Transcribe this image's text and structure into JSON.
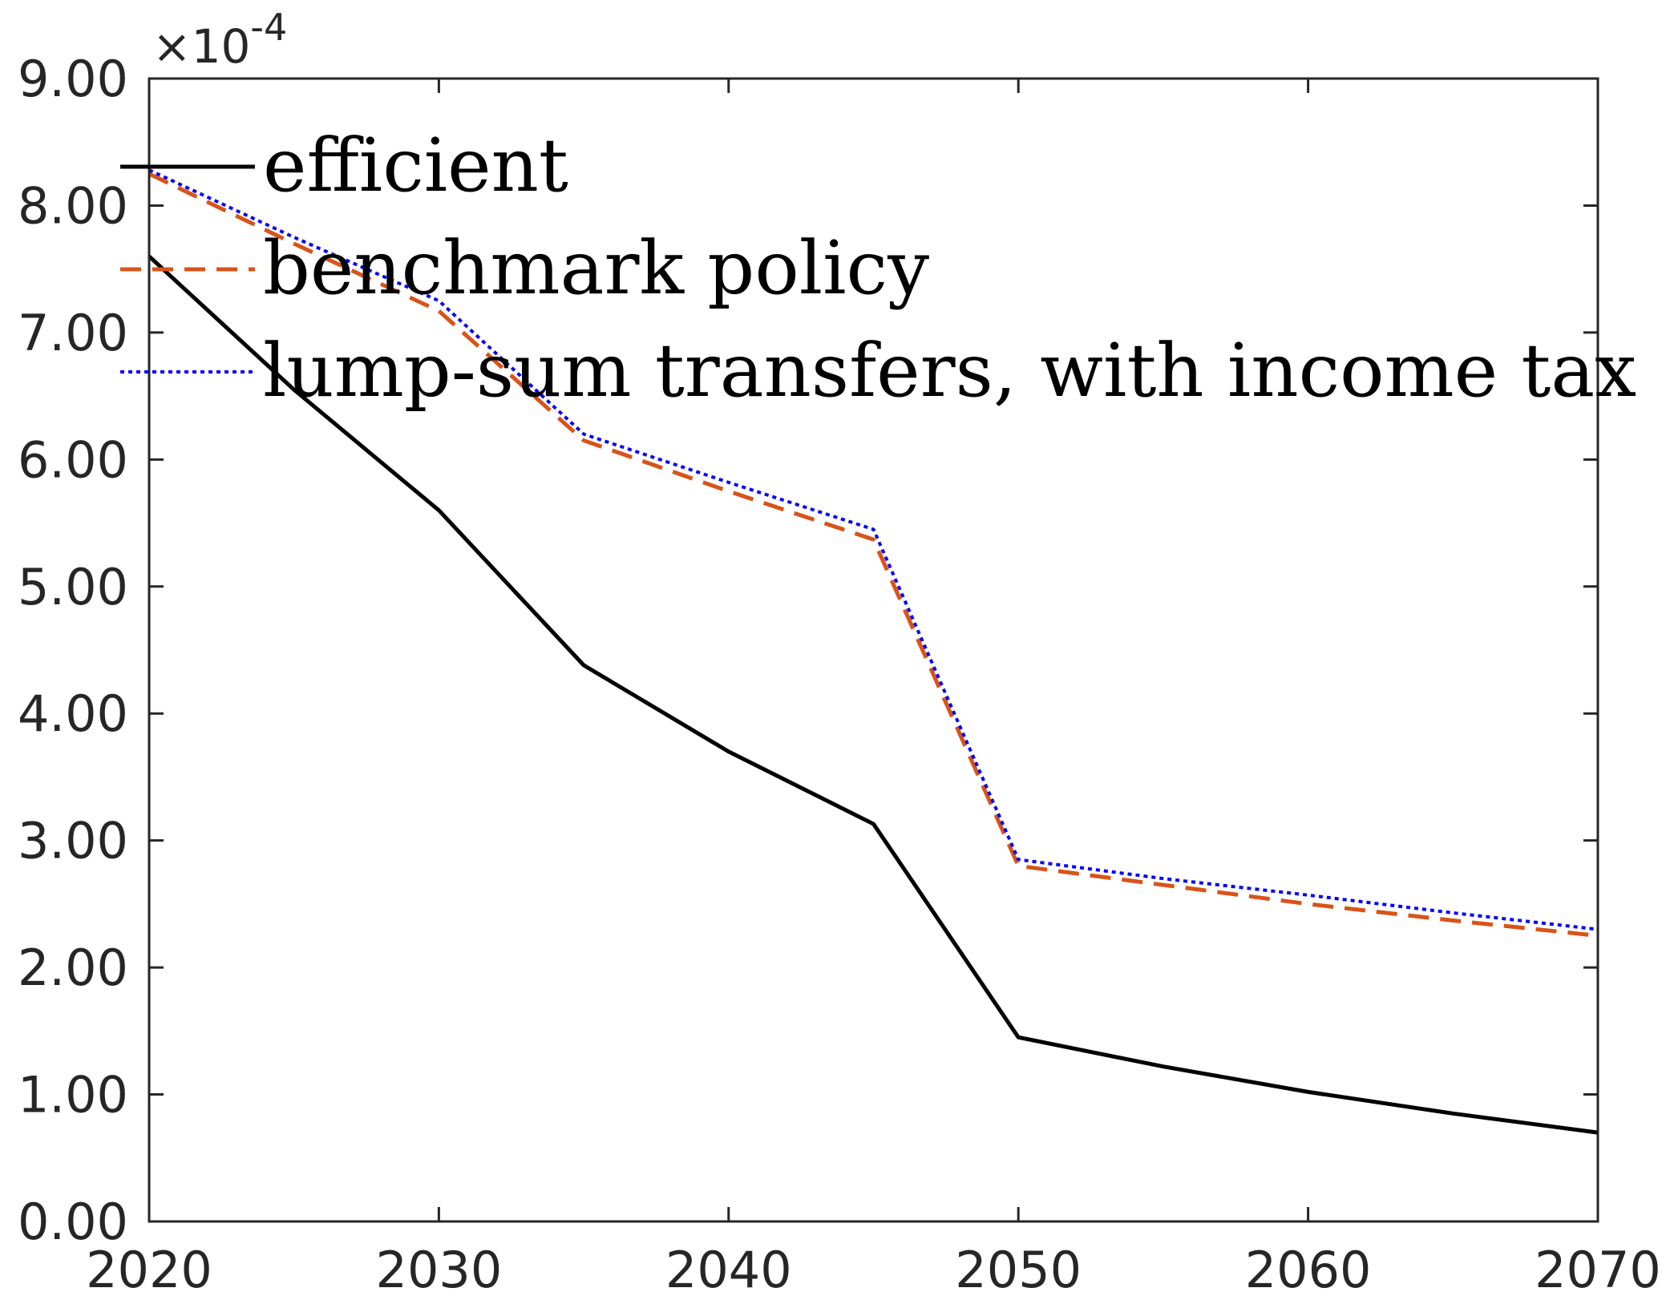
{
  "chart_data": {
    "type": "line",
    "title": "",
    "xlabel": "",
    "ylabel": "",
    "x": [
      2020,
      2025,
      2030,
      2035,
      2040,
      2045,
      2050,
      2055,
      2060,
      2065,
      2070
    ],
    "xlim": [
      2020,
      2070
    ],
    "ylim": [
      0,
      9
    ],
    "x_ticks": [
      2020,
      2030,
      2040,
      2050,
      2060,
      2070
    ],
    "x_tick_labels": [
      "2020",
      "2030",
      "2040",
      "2050",
      "2060",
      "2070"
    ],
    "y_ticks": [
      0,
      1,
      2,
      3,
      4,
      5,
      6,
      7,
      8,
      9
    ],
    "y_tick_labels": [
      "0.00",
      "1.00",
      "2.00",
      "3.00",
      "4.00",
      "5.00",
      "6.00",
      "7.00",
      "8.00",
      "9.00"
    ],
    "y_exponent_label": {
      "base": "×10",
      "exponent": "-4"
    },
    "grid": false,
    "legend_position": "top-left",
    "series": [
      {
        "name": "efficient",
        "color": "#000000",
        "style": "solid",
        "values": [
          7.6,
          6.55,
          5.6,
          4.38,
          3.7,
          3.13,
          1.45,
          1.22,
          1.02,
          0.85,
          0.7
        ]
      },
      {
        "name": "benchmark policy",
        "color": "#D95319",
        "style": "dashed",
        "values": [
          8.25,
          7.7,
          7.17,
          6.15,
          5.75,
          5.37,
          2.8,
          2.65,
          2.5,
          2.37,
          2.25
        ]
      },
      {
        "name": "lump-sum transfers, with income tax",
        "color": "#0000FF",
        "style": "dotted",
        "values": [
          8.28,
          7.75,
          7.25,
          6.2,
          5.82,
          5.45,
          2.85,
          2.7,
          2.57,
          2.43,
          2.3
        ]
      }
    ]
  }
}
